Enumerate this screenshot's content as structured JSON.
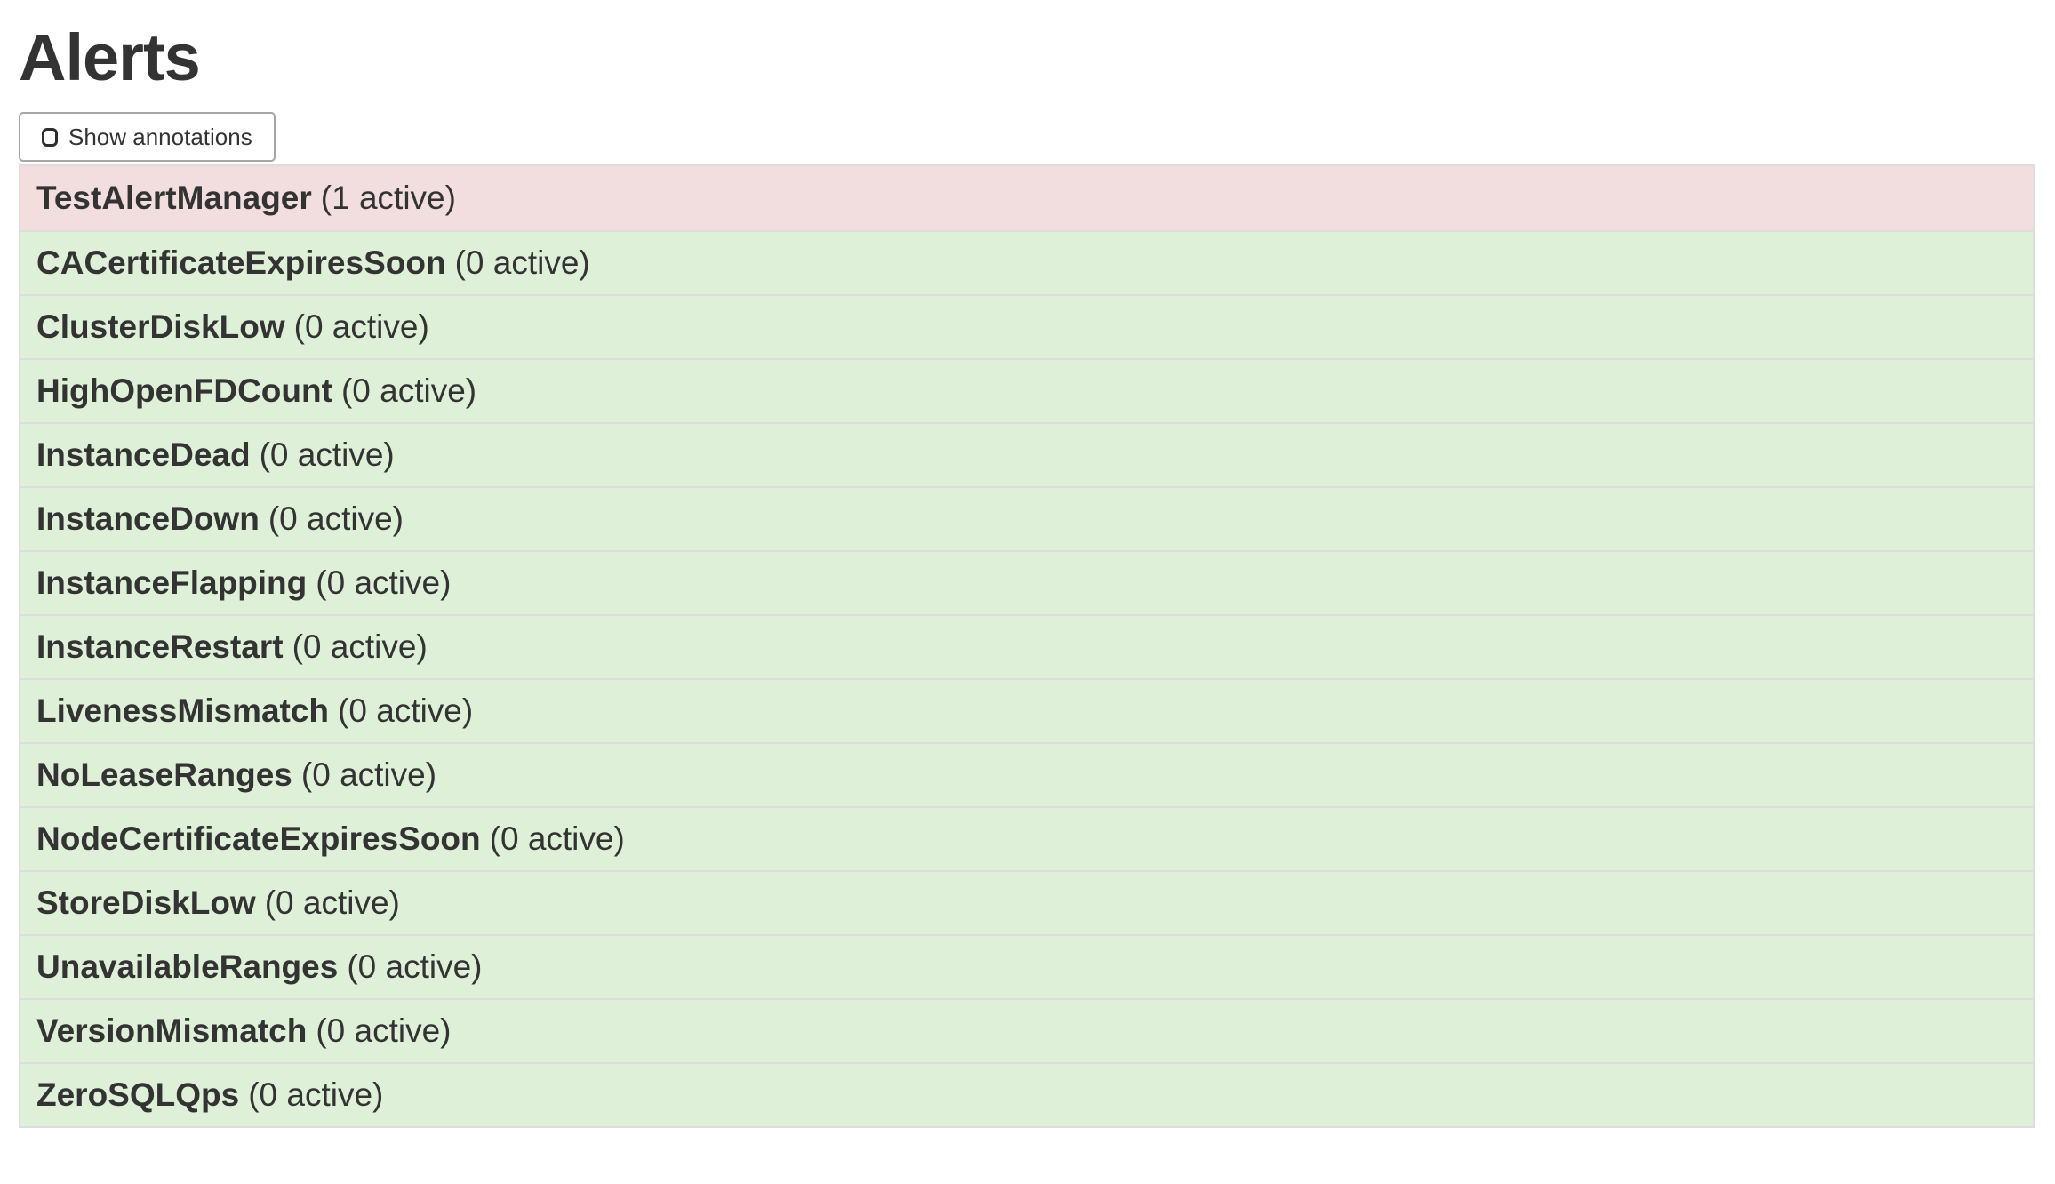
{
  "page": {
    "title": "Alerts"
  },
  "toolbar": {
    "show_annotations_label": "Show annotations",
    "checkbox_checked": false
  },
  "alerts": [
    {
      "name": "TestAlertManager",
      "count_label": "(1 active)",
      "active_count": 1,
      "state": "firing"
    },
    {
      "name": "CACertificateExpiresSoon",
      "count_label": "(0 active)",
      "active_count": 0,
      "state": "inactive"
    },
    {
      "name": "ClusterDiskLow",
      "count_label": "(0 active)",
      "active_count": 0,
      "state": "inactive"
    },
    {
      "name": "HighOpenFDCount",
      "count_label": "(0 active)",
      "active_count": 0,
      "state": "inactive"
    },
    {
      "name": "InstanceDead",
      "count_label": "(0 active)",
      "active_count": 0,
      "state": "inactive"
    },
    {
      "name": "InstanceDown",
      "count_label": "(0 active)",
      "active_count": 0,
      "state": "inactive"
    },
    {
      "name": "InstanceFlapping",
      "count_label": "(0 active)",
      "active_count": 0,
      "state": "inactive"
    },
    {
      "name": "InstanceRestart",
      "count_label": "(0 active)",
      "active_count": 0,
      "state": "inactive"
    },
    {
      "name": "LivenessMismatch",
      "count_label": "(0 active)",
      "active_count": 0,
      "state": "inactive"
    },
    {
      "name": "NoLeaseRanges",
      "count_label": "(0 active)",
      "active_count": 0,
      "state": "inactive"
    },
    {
      "name": "NodeCertificateExpiresSoon",
      "count_label": "(0 active)",
      "active_count": 0,
      "state": "inactive"
    },
    {
      "name": "StoreDiskLow",
      "count_label": "(0 active)",
      "active_count": 0,
      "state": "inactive"
    },
    {
      "name": "UnavailableRanges",
      "count_label": "(0 active)",
      "active_count": 0,
      "state": "inactive"
    },
    {
      "name": "VersionMismatch",
      "count_label": "(0 active)",
      "active_count": 0,
      "state": "inactive"
    },
    {
      "name": "ZeroSQLQps",
      "count_label": "(0 active)",
      "active_count": 0,
      "state": "inactive"
    }
  ],
  "colors": {
    "firing_row_bg": "#f2dede",
    "inactive_row_bg": "#dff0d8",
    "row_border": "#dddddd",
    "text": "#333333",
    "button_border": "#a6a6a6"
  }
}
